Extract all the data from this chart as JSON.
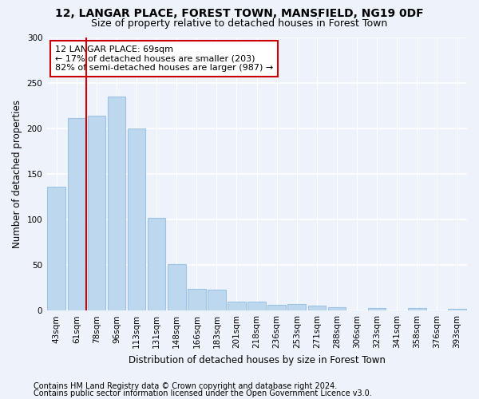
{
  "title1": "12, LANGAR PLACE, FOREST TOWN, MANSFIELD, NG19 0DF",
  "title2": "Size of property relative to detached houses in Forest Town",
  "xlabel": "Distribution of detached houses by size in Forest Town",
  "ylabel": "Number of detached properties",
  "categories": [
    "43sqm",
    "61sqm",
    "78sqm",
    "96sqm",
    "113sqm",
    "131sqm",
    "148sqm",
    "166sqm",
    "183sqm",
    "201sqm",
    "218sqm",
    "236sqm",
    "253sqm",
    "271sqm",
    "288sqm",
    "306sqm",
    "323sqm",
    "341sqm",
    "358sqm",
    "376sqm",
    "393sqm"
  ],
  "values": [
    136,
    211,
    214,
    235,
    200,
    102,
    51,
    24,
    23,
    10,
    10,
    6,
    7,
    5,
    4,
    0,
    3,
    0,
    3,
    0,
    2
  ],
  "bar_color": "#bdd7ee",
  "bar_edge_color": "#9dc3e6",
  "red_line_x": 1.5,
  "annotation_text": "12 LANGAR PLACE: 69sqm\n← 17% of detached houses are smaller (203)\n82% of semi-detached houses are larger (987) →",
  "annotation_box_color": "#ffffff",
  "annotation_box_edge": "#cc0000",
  "footer1": "Contains HM Land Registry data © Crown copyright and database right 2024.",
  "footer2": "Contains public sector information licensed under the Open Government Licence v3.0.",
  "ylim": [
    0,
    300
  ],
  "yticks": [
    0,
    50,
    100,
    150,
    200,
    250,
    300
  ],
  "bg_color": "#eef2fb",
  "grid_color": "#ffffff",
  "title1_fontsize": 10,
  "title2_fontsize": 9,
  "axis_label_fontsize": 8.5,
  "tick_fontsize": 7.5,
  "footer_fontsize": 7.0,
  "annotation_fontsize": 8.0
}
